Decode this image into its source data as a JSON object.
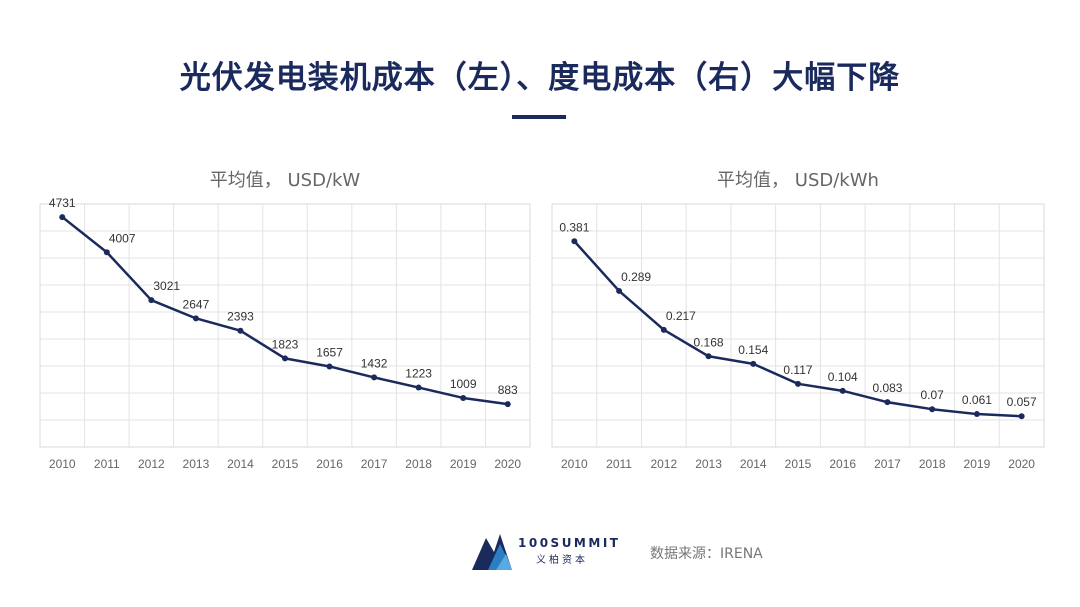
{
  "header": {
    "title": "光伏发电装机成本（左）、度电成本（右）大幅下降"
  },
  "chart_data": [
    {
      "type": "line",
      "title": "平均值， USD/kW",
      "categories": [
        "2010",
        "2011",
        "2012",
        "2013",
        "2014",
        "2015",
        "2016",
        "2017",
        "2018",
        "2019",
        "2020"
      ],
      "values": [
        4731,
        4007,
        3021,
        2647,
        2393,
        1823,
        1657,
        1432,
        1223,
        1009,
        883
      ],
      "labels": [
        "4731",
        "4007",
        "3021",
        "2647",
        "2393",
        "1823",
        "1657",
        "1432",
        "1223",
        "1009",
        "883"
      ],
      "ylim": [
        0,
        5000
      ],
      "grid": true,
      "line_color": "#1b2a5c"
    },
    {
      "type": "line",
      "title": "平均值， USD/kWh",
      "categories": [
        "2010",
        "2011",
        "2012",
        "2013",
        "2014",
        "2015",
        "2016",
        "2017",
        "2018",
        "2019",
        "2020"
      ],
      "values": [
        0.381,
        0.289,
        0.217,
        0.168,
        0.154,
        0.117,
        0.104,
        0.083,
        0.07,
        0.061,
        0.057
      ],
      "labels": [
        "0.381",
        "0.289",
        "0.217",
        "0.168",
        "0.154",
        "0.117",
        "0.104",
        "0.083",
        "0.07",
        "0.061",
        "0.057"
      ],
      "ylim": [
        0,
        0.45
      ],
      "grid": true,
      "line_color": "#1b2a5c"
    }
  ],
  "footer": {
    "brand_name": "100SUMMIT",
    "brand_sub": "义柏资本",
    "source": "数据来源：IRENA"
  }
}
